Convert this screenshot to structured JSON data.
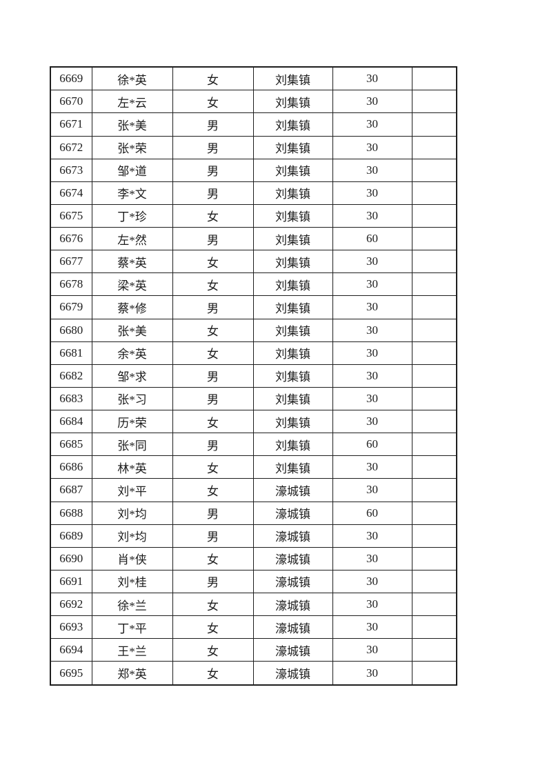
{
  "page": {
    "type": "document-table-page",
    "background_color": "#ffffff",
    "border_color": "#1d1d1d",
    "text_color": "#1c1c1c"
  },
  "table": {
    "cell_names": [
      "cell-serial-number",
      "cell-person-name",
      "cell-gender",
      "cell-town",
      "cell-amount",
      "cell-blank"
    ],
    "rows": [
      [
        "6669",
        "徐*英",
        "女",
        "刘集镇",
        "30",
        ""
      ],
      [
        "6670",
        "左*云",
        "女",
        "刘集镇",
        "30",
        ""
      ],
      [
        "6671",
        "张*美",
        "男",
        "刘集镇",
        "30",
        ""
      ],
      [
        "6672",
        "张*荣",
        "男",
        "刘集镇",
        "30",
        ""
      ],
      [
        "6673",
        "邹*道",
        "男",
        "刘集镇",
        "30",
        ""
      ],
      [
        "6674",
        "李*文",
        "男",
        "刘集镇",
        "30",
        ""
      ],
      [
        "6675",
        "丁*珍",
        "女",
        "刘集镇",
        "30",
        ""
      ],
      [
        "6676",
        "左*然",
        "男",
        "刘集镇",
        "60",
        ""
      ],
      [
        "6677",
        "蔡*英",
        "女",
        "刘集镇",
        "30",
        ""
      ],
      [
        "6678",
        "梁*英",
        "女",
        "刘集镇",
        "30",
        ""
      ],
      [
        "6679",
        "蔡*修",
        "男",
        "刘集镇",
        "30",
        ""
      ],
      [
        "6680",
        "张*美",
        "女",
        "刘集镇",
        "30",
        ""
      ],
      [
        "6681",
        "余*英",
        "女",
        "刘集镇",
        "30",
        ""
      ],
      [
        "6682",
        "邹*求",
        "男",
        "刘集镇",
        "30",
        ""
      ],
      [
        "6683",
        "张*习",
        "男",
        "刘集镇",
        "30",
        ""
      ],
      [
        "6684",
        "历*荣",
        "女",
        "刘集镇",
        "30",
        ""
      ],
      [
        "6685",
        "张*同",
        "男",
        "刘集镇",
        "60",
        ""
      ],
      [
        "6686",
        "林*英",
        "女",
        "刘集镇",
        "30",
        ""
      ],
      [
        "6687",
        "刘*平",
        "女",
        "濠城镇",
        "30",
        ""
      ],
      [
        "6688",
        "刘*均",
        "男",
        "濠城镇",
        "60",
        ""
      ],
      [
        "6689",
        "刘*均",
        "男",
        "濠城镇",
        "30",
        ""
      ],
      [
        "6690",
        "肖*侠",
        "女",
        "濠城镇",
        "30",
        ""
      ],
      [
        "6691",
        "刘*桂",
        "男",
        "濠城镇",
        "30",
        ""
      ],
      [
        "6692",
        "徐*兰",
        "女",
        "濠城镇",
        "30",
        ""
      ],
      [
        "6693",
        "丁*平",
        "女",
        "濠城镇",
        "30",
        ""
      ],
      [
        "6694",
        "王*兰",
        "女",
        "濠城镇",
        "30",
        ""
      ],
      [
        "6695",
        "郑*英",
        "女",
        "濠城镇",
        "30",
        ""
      ]
    ]
  }
}
